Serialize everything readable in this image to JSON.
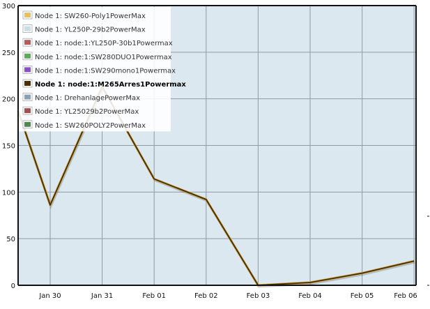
{
  "chart_data": {
    "type": "line",
    "title": "",
    "xlabel": "",
    "ylabel": "",
    "ylim": [
      0,
      300
    ],
    "yticks": [
      0,
      50,
      100,
      150,
      200,
      250,
      300
    ],
    "categories": [
      "Jan 30",
      "Jan 31",
      "Feb 01",
      "Feb 02",
      "Feb 03",
      "Feb 04",
      "Feb 05",
      "Feb 06"
    ],
    "grid": true,
    "legend_position": "top-left",
    "legend": [
      {
        "label": "Node 1: SW260-Poly1PowerMax",
        "color": "#e8c060",
        "highlight": false
      },
      {
        "label": "Node 1: YL250P-29b2PowerMax",
        "color": "#c8dcea",
        "highlight": false
      },
      {
        "label": "Node 1: node:1:YL250P-30b1Powermax",
        "color": "#b85a5a",
        "highlight": false
      },
      {
        "label": "Node 1: node:1:SW280DUO1Powermax",
        "color": "#5cab5c",
        "highlight": false
      },
      {
        "label": "Node 1: node:1:SW290mono1Powermax",
        "color": "#8a4fc4",
        "highlight": false
      },
      {
        "label": "Node 1: node:1:M265Arres1Powermax",
        "color": "#4a3000",
        "highlight": true
      },
      {
        "label": "Node 1: DrehanlagePowerMax",
        "color": "#8aa0b8",
        "highlight": false
      },
      {
        "label": "Node 1: YL25029b2PowerMax",
        "color": "#a05050",
        "highlight": false
      },
      {
        "label": "Node 1: SW260POLY2PowerMax",
        "color": "#4e8a4e",
        "highlight": false
      }
    ],
    "series": [
      {
        "name": "Node 1: node:1:M265Arres1Powermax",
        "color": "#4a3000",
        "points": [
          {
            "x": "Jan 29",
            "y": 187
          },
          {
            "x": "Jan 30",
            "y": 86
          },
          {
            "x": "Jan 31",
            "y": 213
          },
          {
            "x": "Feb 01",
            "y": 114
          },
          {
            "x": "Feb 02",
            "y": 92
          },
          {
            "x": "Feb 03",
            "y": 0
          },
          {
            "x": "Feb 04",
            "y": 3
          },
          {
            "x": "Feb 05",
            "y": 13
          },
          {
            "x": "Feb 06",
            "y": 26
          }
        ]
      }
    ]
  },
  "colors": {
    "plot_background": "#dce8f0",
    "grid": "#8e9aa4",
    "axis": "#111111"
  }
}
